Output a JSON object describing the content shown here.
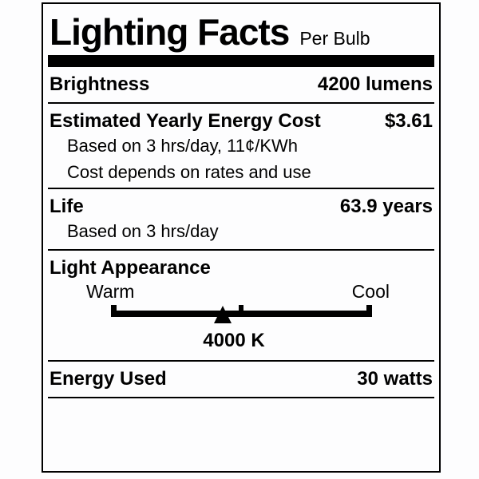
{
  "page": {
    "background": "#fdfdfe",
    "ink": "#000000"
  },
  "label": {
    "title": "Lighting Facts",
    "subtitle": "Per Bulb",
    "rows": {
      "brightness": {
        "name": "Brightness",
        "value": "4200 lumens"
      },
      "energy_cost": {
        "name": "Estimated Yearly Energy Cost",
        "value": "$3.61",
        "notes": [
          "Based on 3 hrs/day, 11¢/KWh",
          "Cost depends on rates and use"
        ]
      },
      "life": {
        "name": "Life",
        "value": "63.9 years",
        "note": "Based on 3 hrs/day"
      },
      "light_appearance": {
        "name": "Light Appearance",
        "scale_left": "Warm",
        "scale_right": "Cool",
        "value": "4000 K",
        "marker_percent": 43
      },
      "energy_used": {
        "name": "Energy Used",
        "value": "30 watts"
      }
    }
  }
}
